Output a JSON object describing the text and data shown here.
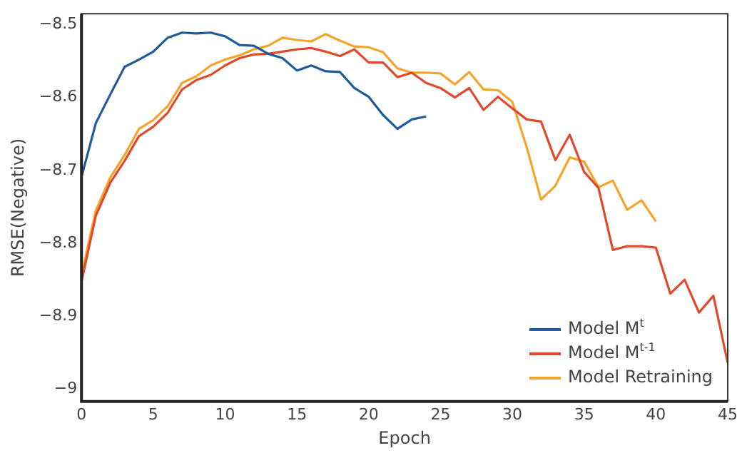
{
  "chart_data": {
    "type": "line",
    "xlabel": "Epoch",
    "ylabel": "RMSE(Negative)",
    "xlim": [
      0,
      45
    ],
    "xticks": [
      0,
      5,
      10,
      15,
      20,
      25,
      30,
      35,
      40,
      45
    ],
    "ylim": [
      -9.017,
      -8.485
    ],
    "yticks": [
      -8.5,
      -8.6,
      -8.7,
      -8.8,
      -8.9,
      -9
    ],
    "grid": false,
    "legend": "bottom right",
    "marker": "none",
    "line_style": "solid",
    "series": [
      {
        "name": "Model M$^{t}$",
        "color": "#1d5c99",
        "x": [
          0,
          1,
          2,
          3,
          4,
          5,
          6,
          7,
          8,
          9,
          10,
          11,
          12,
          13,
          14,
          15,
          16,
          17,
          18,
          19,
          20,
          21,
          22,
          23,
          24
        ],
        "values": [
          -8.709,
          -8.635,
          -8.596,
          -8.558,
          -8.548,
          -8.537,
          -8.518,
          -8.511,
          -8.512,
          -8.511,
          -8.516,
          -8.528,
          -8.529,
          -8.54,
          -8.546,
          -8.563,
          -8.556,
          -8.564,
          -8.565,
          -8.587,
          -8.599,
          -8.624,
          -8.643,
          -8.63,
          -8.626
        ]
      },
      {
        "name": "Model M$^{t-1}$",
        "color": "#e04a2b",
        "x": [
          0,
          1,
          2,
          3,
          4,
          5,
          6,
          7,
          8,
          9,
          10,
          11,
          12,
          13,
          14,
          15,
          16,
          17,
          18,
          19,
          20,
          21,
          22,
          23,
          24,
          25,
          26,
          27,
          28,
          29,
          30,
          31,
          32,
          33,
          34,
          35,
          36,
          37,
          38,
          39,
          40,
          41,
          42,
          43,
          44,
          45
        ],
        "values": [
          -8.853,
          -8.762,
          -8.717,
          -8.687,
          -8.653,
          -8.64,
          -8.621,
          -8.589,
          -8.576,
          -8.569,
          -8.556,
          -8.546,
          -8.541,
          -8.54,
          -8.537,
          -8.534,
          -8.532,
          -8.537,
          -8.543,
          -8.534,
          -8.552,
          -8.552,
          -8.572,
          -8.566,
          -8.58,
          -8.587,
          -8.6,
          -8.587,
          -8.617,
          -8.599,
          -8.615,
          -8.63,
          -8.633,
          -8.686,
          -8.651,
          -8.702,
          -8.724,
          -8.809,
          -8.804,
          -8.804,
          -8.806,
          -8.869,
          -8.85,
          -8.895,
          -8.872,
          -8.964
        ]
      },
      {
        "name": "Model Retraining",
        "color": "#f5a42a",
        "x": [
          0,
          1,
          2,
          3,
          4,
          5,
          6,
          7,
          8,
          9,
          10,
          11,
          12,
          13,
          14,
          15,
          16,
          17,
          18,
          19,
          20,
          21,
          22,
          23,
          24,
          25,
          26,
          27,
          28,
          29,
          30,
          31,
          32,
          33,
          34,
          35,
          36,
          37,
          38,
          39,
          40
        ],
        "values": [
          -8.843,
          -8.755,
          -8.71,
          -8.679,
          -8.643,
          -8.631,
          -8.612,
          -8.58,
          -8.571,
          -8.556,
          -8.548,
          -8.542,
          -8.534,
          -8.529,
          -8.518,
          -8.521,
          -8.523,
          -8.513,
          -8.522,
          -8.53,
          -8.531,
          -8.538,
          -8.56,
          -8.566,
          -8.566,
          -8.567,
          -8.582,
          -8.565,
          -8.589,
          -8.59,
          -8.606,
          -8.668,
          -8.74,
          -8.721,
          -8.682,
          -8.688,
          -8.723,
          -8.714,
          -8.754,
          -8.741,
          -8.77
        ]
      }
    ]
  }
}
